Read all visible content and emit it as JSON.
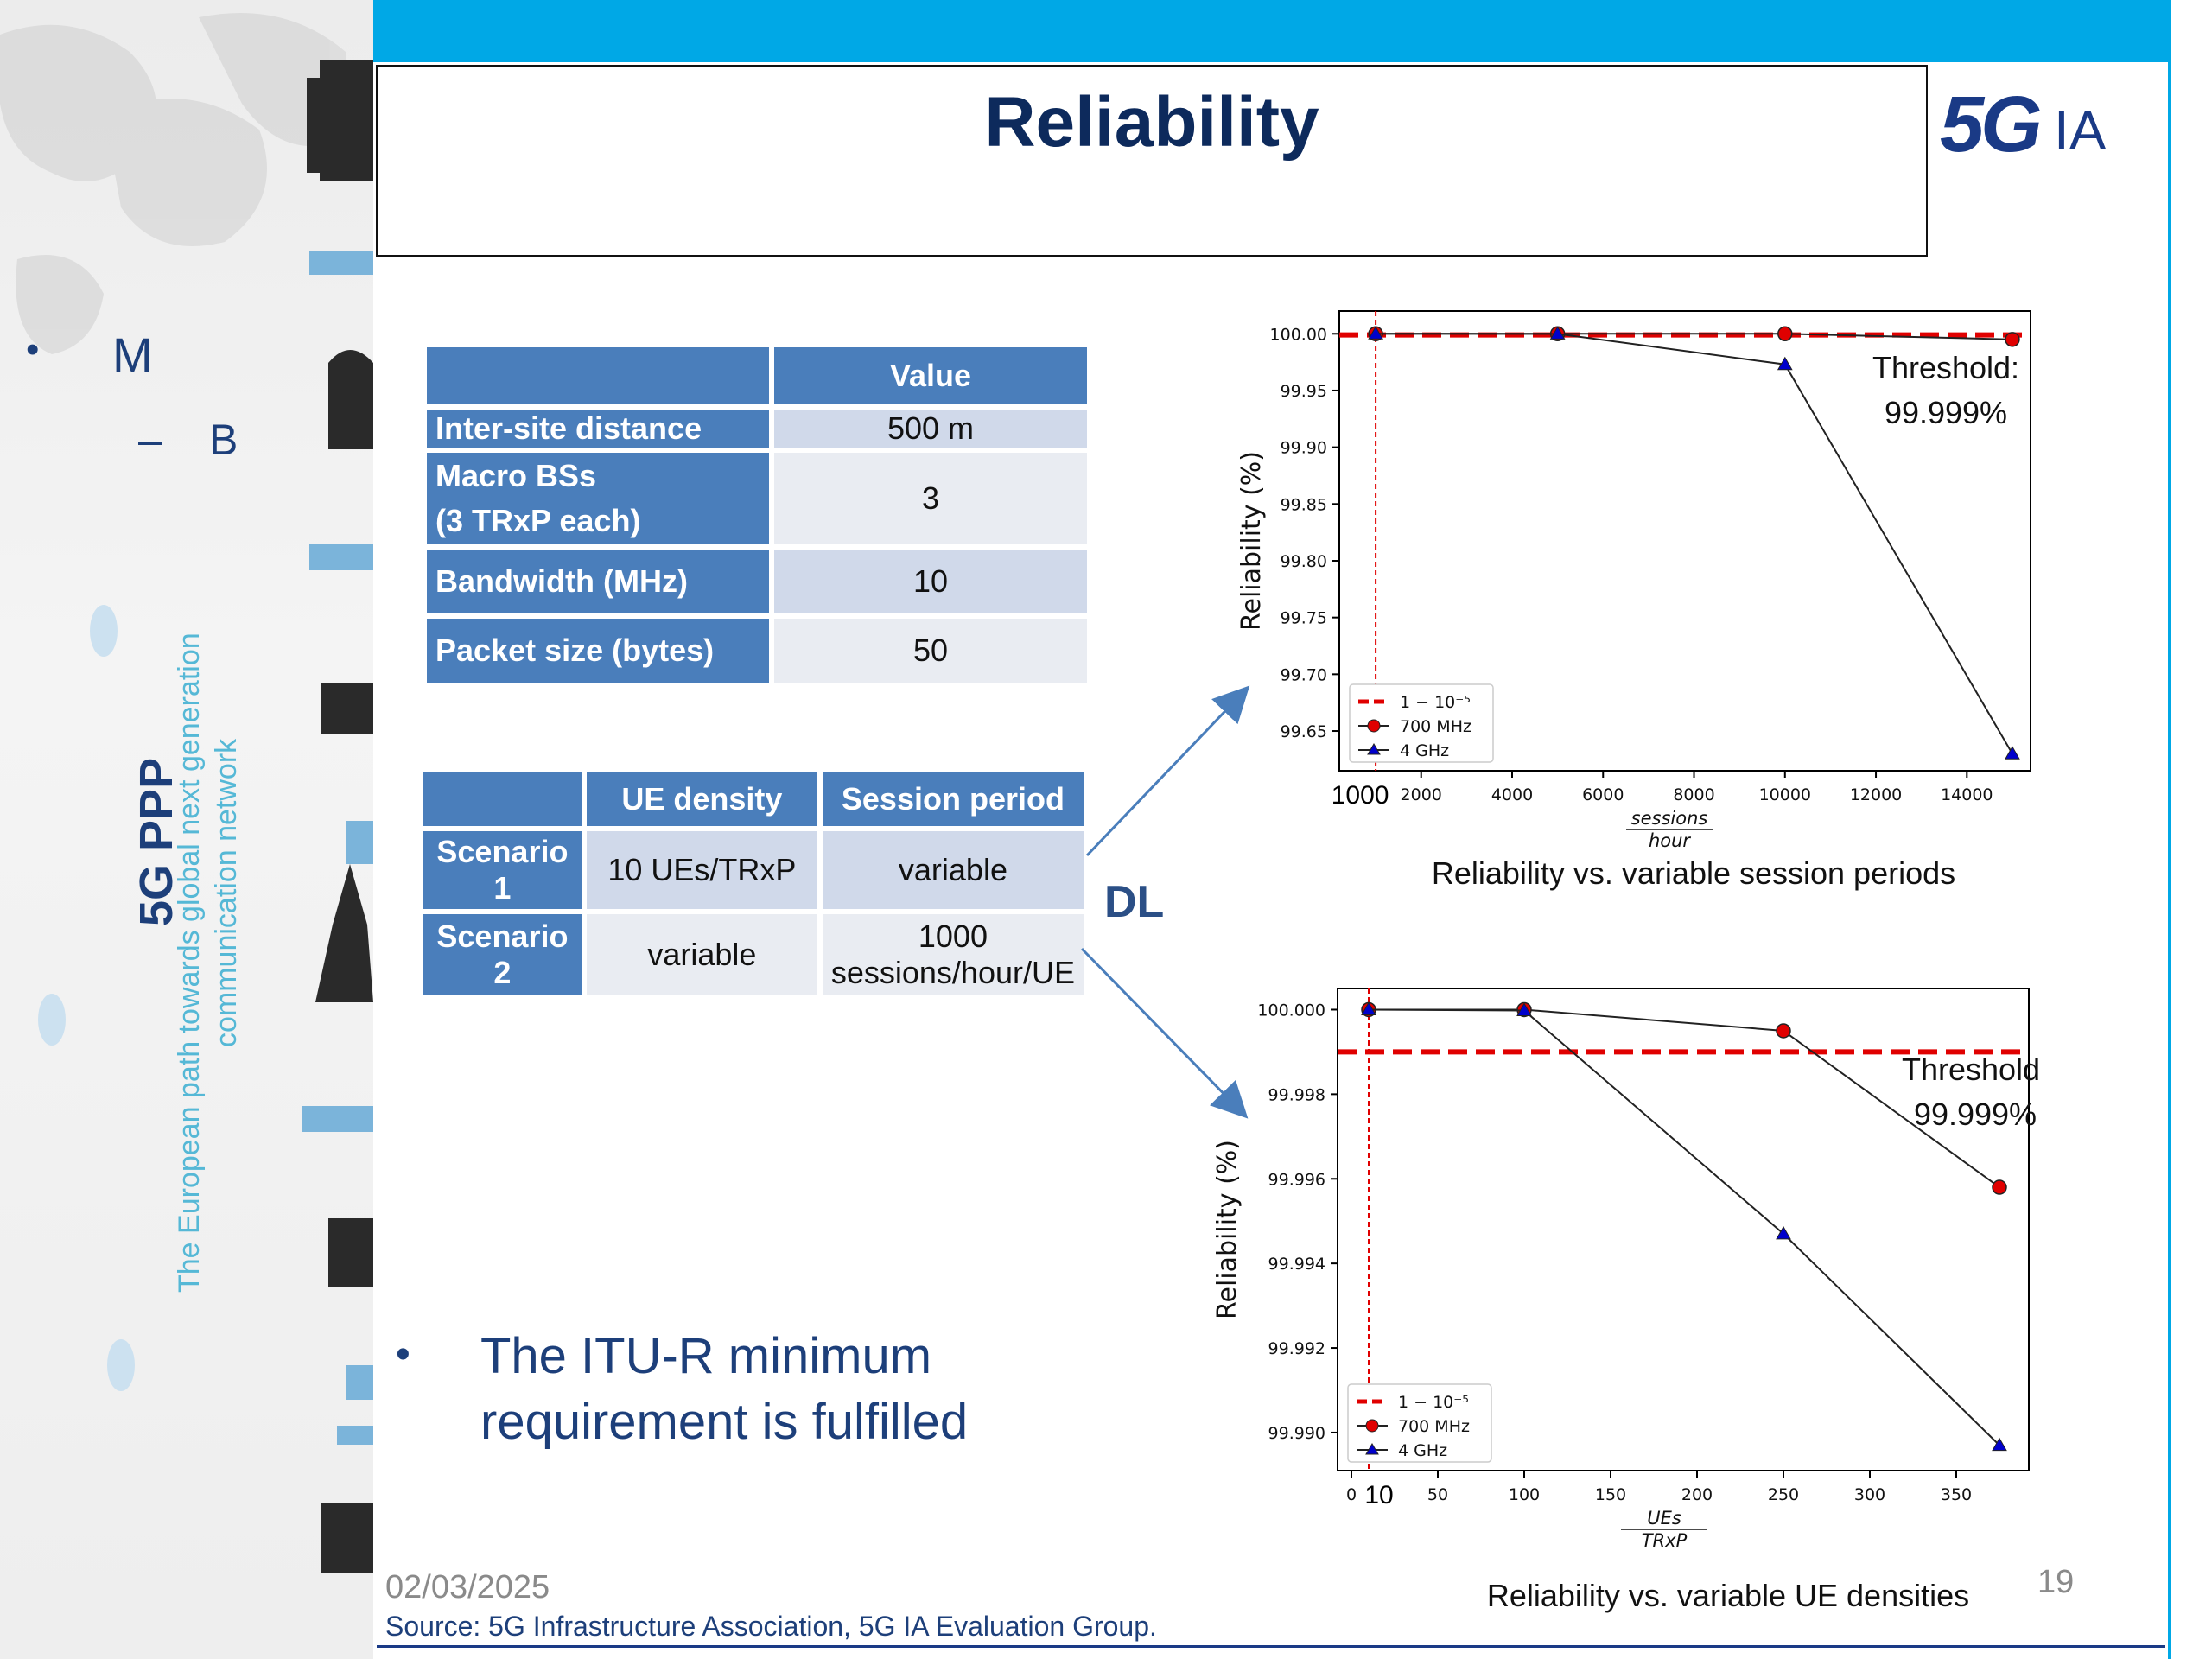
{
  "slide": {
    "title": "Reliability",
    "logo_text": "IA",
    "logo_mark": "5G",
    "dl_label": "DL",
    "date": "02/03/2025",
    "source": "Source: 5G Infrastructure Association, 5G IA Evaluation Group.",
    "page_number": "19",
    "colors": {
      "top_band": "#00a8e6",
      "title": "#0d2a5c",
      "table_header": "#4a7ebb",
      "threshold": "#e00000"
    }
  },
  "left_panel": {
    "bullet_main": "M",
    "bullet_sub_dash": "–",
    "bullet_sub": "B",
    "brand": "5G PPP",
    "tagline_1": "The European path towards global next generation",
    "tagline_2": "communication network"
  },
  "param_table": {
    "header": "Value",
    "rows": [
      {
        "label": "Inter-site distance",
        "value": "500 m"
      },
      {
        "label": "Macro BSs",
        "label_2": "(3 TRxP each)",
        "value": "3"
      },
      {
        "label": "Bandwidth (MHz)",
        "value": "10"
      },
      {
        "label": "Packet size (bytes)",
        "value": "50"
      }
    ]
  },
  "scenario_table": {
    "headers": [
      "UE density",
      "Session period"
    ],
    "rows": [
      {
        "label_1": "Scenario",
        "label_2": "1",
        "density": "10 UEs/TRxP",
        "period": "variable"
      },
      {
        "label_1": "Scenario",
        "label_2": "2",
        "density": "variable",
        "period_1": "1000",
        "period_2": "sessions/hour/UE"
      }
    ]
  },
  "bullet": {
    "line_1": "The ITU-R minimum",
    "line_2": "requirement is fulfilled"
  },
  "chart_data": [
    {
      "type": "line",
      "caption": "Reliability vs. variable session periods",
      "xlabel_num": "sessions",
      "xlabel_den": "hour",
      "ylabel": "Reliability (%)",
      "x_ticks": [
        "2000",
        "4000",
        "6000",
        "8000",
        "10000",
        "12000",
        "14000"
      ],
      "x_extra_tick": "1000",
      "y_ticks": [
        "100.00",
        "99.95",
        "99.90",
        "99.85",
        "99.80",
        "99.75",
        "99.70",
        "99.65"
      ],
      "xlim": [
        200,
        15400
      ],
      "ylim": [
        99.615,
        100.02
      ],
      "threshold_value": 99.999,
      "threshold_label_1": "Threshold:",
      "threshold_label_2": "99.999%",
      "legend": {
        "placement": "lower-left",
        "threshold": "1 − 10⁻⁵",
        "s1": "700 MHz",
        "s2": "4 GHz"
      },
      "series": [
        {
          "name": "700 MHz",
          "color": "#e00000",
          "marker": "circle",
          "x": [
            1000,
            5000,
            10000,
            15000
          ],
          "y": [
            100.0,
            100.0,
            100.0,
            99.995
          ]
        },
        {
          "name": "4 GHz",
          "color": "#0000cc",
          "marker": "triangle",
          "x": [
            1000,
            5000,
            10000,
            15000
          ],
          "y": [
            100.0,
            99.9999,
            99.973,
            99.63
          ]
        }
      ]
    },
    {
      "type": "line",
      "caption": "Reliability vs. variable UE densities",
      "xlabel_num": "UEs",
      "xlabel_den": "TRxP",
      "ylabel": "Reliability (%)",
      "x_ticks": [
        "0",
        "50",
        "100",
        "150",
        "200",
        "250",
        "300",
        "350"
      ],
      "x_tick_values": [
        0,
        50,
        100,
        150,
        200,
        250,
        300,
        350
      ],
      "x_extra_tick": "10",
      "y_ticks": [
        "100.000",
        "99.998",
        "99.996",
        "99.994",
        "99.992",
        "99.990"
      ],
      "xlim": [
        -8,
        392
      ],
      "ylim": [
        99.9891,
        100.0005
      ],
      "threshold_value": 99.999,
      "threshold_label_1": "Threshold:",
      "threshold_label_2": "99.999%",
      "legend": {
        "placement": "lower-left",
        "threshold": "1 − 10⁻⁵",
        "s1": "700 MHz",
        "s2": "4 GHz"
      },
      "series": [
        {
          "name": "700 MHz",
          "color": "#e00000",
          "marker": "circle",
          "x": [
            10,
            100,
            250,
            375
          ],
          "y": [
            100.0,
            100.0,
            99.9995,
            99.9958
          ]
        },
        {
          "name": "4 GHz",
          "color": "#0000cc",
          "marker": "triangle",
          "x": [
            10,
            100,
            250,
            375
          ],
          "y": [
            100.0,
            99.99998,
            99.9947,
            99.9897
          ]
        }
      ]
    }
  ]
}
